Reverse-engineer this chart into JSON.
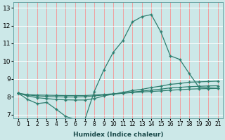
{
  "xlabel": "Humidex (Indice chaleur)",
  "xlim": [
    -0.5,
    21.5
  ],
  "ylim": [
    6.8,
    13.3
  ],
  "xticks": [
    0,
    1,
    2,
    3,
    4,
    5,
    6,
    7,
    8,
    9,
    10,
    11,
    12,
    13,
    14,
    15,
    16,
    17,
    18,
    19,
    20,
    21
  ],
  "yticks": [
    7,
    8,
    9,
    10,
    11,
    12,
    13
  ],
  "bg_color": "#cce8e8",
  "line_color": "#2e7d6e",
  "grid_color_h": "#ffffff",
  "grid_color_v": "#f0a0a0",
  "series": [
    [
      8.2,
      7.85,
      7.62,
      7.68,
      7.3,
      6.9,
      6.72,
      6.7,
      8.3,
      9.5,
      10.5,
      11.15,
      12.2,
      12.5,
      12.62,
      11.65,
      10.3,
      10.1,
      9.3,
      8.55,
      8.5,
      8.48
    ],
    [
      8.2,
      8.05,
      7.95,
      7.9,
      7.85,
      7.83,
      7.82,
      7.82,
      7.9,
      8.05,
      8.15,
      8.25,
      8.35,
      8.42,
      8.52,
      8.6,
      8.7,
      8.75,
      8.82,
      8.84,
      8.86,
      8.88
    ],
    [
      8.2,
      8.1,
      8.05,
      8.02,
      8.0,
      7.99,
      7.99,
      8.0,
      8.05,
      8.1,
      8.15,
      8.2,
      8.27,
      8.32,
      8.38,
      8.43,
      8.5,
      8.53,
      8.57,
      8.59,
      8.61,
      8.62
    ],
    [
      8.2,
      8.12,
      8.1,
      8.09,
      8.08,
      8.07,
      8.07,
      8.07,
      8.1,
      8.13,
      8.17,
      8.2,
      8.24,
      8.27,
      8.3,
      8.33,
      8.37,
      8.4,
      8.43,
      8.45,
      8.46,
      8.47
    ]
  ]
}
